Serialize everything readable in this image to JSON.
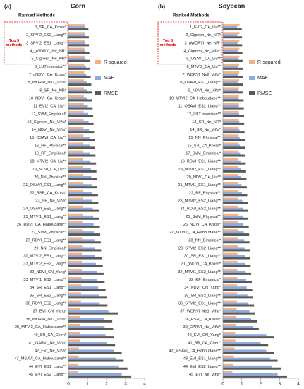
{
  "chart_data": [
    {
      "type": "bar",
      "orientation": "horizontal",
      "panel_label": "(a)",
      "title": "Corn",
      "axis_title": "Ranked Methods",
      "annotation": "Top 5 methods",
      "legend": "upper right",
      "categories": [
        "1_SR_CA_Kross*",
        "2_SPVI2_ES2_Liang**",
        "3_SPVI2_ES1_Liang**",
        "4_gWDRVI_Ne_NR*",
        "5_Clgreen_Ne_NR*",
        "6_LUT inversion**",
        "7_gNDVI_CA_Kross*",
        "8_WDRVI_Ne2_Viña*",
        "9_SR_Ne_NR*",
        "10_NDVI_CA_Kross*",
        "11_EVI2_CA_Liu**",
        "12_SVM_Empirical*",
        "13_Clgreen_Ne_Viña*",
        "14_NDVI_Ne_Viña*",
        "15_OSAVI_CA_Liu**",
        "16_RF_Physical**",
        "16_RF_Empirical*",
        "18_MTVI2_CA_Liu**",
        "19_NDVI_CA_Liu**",
        "20_NN_Physical**",
        "21_OSAVI_ES1_Liang**",
        "22_RSR_CA_Kross*",
        "23_SR_Ne_Viña*",
        "24_OSAVI_ES2_Liang**",
        "25_MTVI1_ES1_Liang**",
        "26_RDVI_CA_Haboudane**",
        "27_SVM_Physical**",
        "27_RDVI_ES1_Liang**",
        "29_NN_Empirical*",
        "30_MTVI2_ES1_Liang**",
        "31_MTVI2_ES2_Liang**",
        "32_NDVI_CN_Yang*",
        "33_MTVI1_ES2_Liang**",
        "34_SR_ES1_Liang**",
        "35_SR_ES2_Liang**",
        "36_RDVI_ES2_Liang**",
        "37_EVI_CN_Yang*",
        "38_WDRVI_Ne1_Viña*",
        "39_MTVI2_CA_Haboudane**",
        "40_SR_CA_Chen*",
        "41_GARVI_Ne_Viña*",
        "42_EVI_Ne_Viña*",
        "43_MSAVI_CA_Haboudane**",
        "44_EVI_ES1_Liang**",
        "45_EVI_ES2_Liang**"
      ],
      "series": [
        {
          "name": "R-squared",
          "color": "#f4b183",
          "values": [
            0.86,
            0.85,
            0.85,
            0.84,
            0.84,
            0.83,
            0.83,
            0.82,
            0.82,
            0.81,
            0.81,
            0.8,
            0.8,
            0.79,
            0.79,
            0.78,
            0.78,
            0.77,
            0.77,
            0.76,
            0.76,
            0.75,
            0.75,
            0.74,
            0.74,
            0.73,
            0.73,
            0.72,
            0.72,
            0.71,
            0.7,
            0.7,
            0.69,
            0.68,
            0.67,
            0.66,
            0.6,
            0.63,
            0.62,
            0.61,
            0.6,
            0.55,
            0.54,
            0.52,
            0.5
          ]
        },
        {
          "name": "MAE",
          "color": "#8faadc",
          "values": [
            0.85,
            0.86,
            0.87,
            0.89,
            0.9,
            0.92,
            0.94,
            0.96,
            0.98,
            1.0,
            1.02,
            1.04,
            1.06,
            1.08,
            1.1,
            1.12,
            1.14,
            1.16,
            1.18,
            1.2,
            1.22,
            1.24,
            1.26,
            1.28,
            1.3,
            1.32,
            1.34,
            1.36,
            1.38,
            1.4,
            1.44,
            1.48,
            1.52,
            1.56,
            1.6,
            1.64,
            2.1,
            1.85,
            1.9,
            1.95,
            2.0,
            2.4,
            2.5,
            2.65,
            2.8
          ]
        },
        {
          "name": "RMSE",
          "color": "#595959",
          "values": [
            1.05,
            1.07,
            1.08,
            1.1,
            1.12,
            1.15,
            1.17,
            1.2,
            1.22,
            1.25,
            1.27,
            1.3,
            1.32,
            1.35,
            1.37,
            1.4,
            1.42,
            1.45,
            1.47,
            1.5,
            1.52,
            1.55,
            1.57,
            1.6,
            1.62,
            1.65,
            1.67,
            1.7,
            1.72,
            1.75,
            1.8,
            1.85,
            1.9,
            1.95,
            2.0,
            2.05,
            2.6,
            2.3,
            2.35,
            2.4,
            2.45,
            2.8,
            2.9,
            3.1,
            3.3
          ]
        }
      ],
      "xlim": [
        0,
        4
      ],
      "xticks": [
        0,
        1,
        2,
        3,
        4
      ]
    },
    {
      "type": "bar",
      "orientation": "horizontal",
      "panel_label": "(b)",
      "title": "Soybean",
      "axis_title": "Ranked Methods",
      "annotation": "Top 5 methods",
      "legend": "upper right",
      "categories": [
        "1_EVI2_CA_Liu**",
        "2_Clgreen_Ne_NR*",
        "3_gWDRVI_Ne_NR*",
        "4_Clgreen_Ne_Viña*",
        "5_OSAVI_CA_Liu**",
        "6_MTVI2_CA_Liu**",
        "7_WDRVI_Ne2_Viña*",
        "8_OSAVI_ES1_Liang**",
        "9_NDVI_Ne_Viña*",
        "10_MTVI2_CA_Haboudane**",
        "11_OSAVI_ES2_Liang**",
        "12_LUT inversion**",
        "13_SR_Ne_NR*",
        "14_SR_Ne_Viña*",
        "15_NN_Physical**",
        "15_SR_CA_Kross*",
        "17_SVM_Empirical*",
        "18_RDVI_ES1_Liang**",
        "19_MTVI2_ES1_Liang**",
        "20_NDVI_CA_Liu**",
        "21_MTVI1_ES1_Liang**",
        "22_RF_Physical**",
        "23_MTVI2_ES2_Liang**",
        "24_RDVI_ES2_Liang**",
        "25_SVM_Physical**",
        "26_NDVI_CA_Kross*",
        "27_MTVI2_CA_Haboudane**",
        "28_NN_Empirical*",
        "29_SPVI2_ES2_Liang**",
        "30_SR_ES1_Liang**",
        "31_gNDVI_CA_Kross*",
        "32_MTVI1_ES2_Liang**",
        "32_RF_Empirical*",
        "34_NDVI_CN_Yang*",
        "35_SR_ES2_Liang**",
        "36_SPVI2_ES1_Liang**",
        "37_WDRVI_Ne1_Viña*",
        "38_RSR_CA_Kross*",
        "39_GARVI_Ne_Viña*",
        "40_EVI_CN_Yang*",
        "41_SR_CA_Chen*",
        "42_MSAVI_CA_Haboudane**",
        "43_EVI_ES1_Liang**",
        "44_EVI_ES2_Liang**",
        "45_EVI_Ne_Viña*"
      ],
      "series": [
        {
          "name": "R-squared",
          "color": "#f4b183",
          "values": [
            0.88,
            0.88,
            0.87,
            0.87,
            0.87,
            0.86,
            0.86,
            0.86,
            0.85,
            0.85,
            0.85,
            0.84,
            0.84,
            0.84,
            0.83,
            0.83,
            0.83,
            0.82,
            0.82,
            0.82,
            0.81,
            0.81,
            0.8,
            0.8,
            0.8,
            0.79,
            0.79,
            0.78,
            0.78,
            0.77,
            0.77,
            0.76,
            0.76,
            0.75,
            0.75,
            0.74,
            0.73,
            0.72,
            0.7,
            0.65,
            0.66,
            0.62,
            0.58,
            0.56,
            0.5
          ]
        },
        {
          "name": "MAE",
          "color": "#8faadc",
          "values": [
            0.75,
            0.76,
            0.77,
            0.78,
            0.79,
            0.8,
            0.81,
            0.82,
            0.83,
            0.84,
            0.85,
            0.86,
            0.87,
            0.88,
            0.89,
            0.9,
            0.91,
            0.93,
            0.95,
            0.97,
            0.99,
            1.01,
            1.03,
            1.05,
            1.07,
            1.09,
            1.11,
            1.13,
            1.15,
            1.17,
            1.19,
            1.21,
            1.23,
            1.26,
            1.3,
            1.35,
            1.4,
            1.5,
            1.6,
            2.3,
            2.0,
            2.3,
            2.5,
            2.6,
            2.9
          ]
        },
        {
          "name": "RMSE",
          "color": "#595959",
          "values": [
            1.0,
            1.01,
            1.02,
            1.03,
            1.04,
            1.05,
            1.06,
            1.07,
            1.08,
            1.1,
            1.11,
            1.12,
            1.13,
            1.15,
            1.16,
            1.18,
            1.19,
            1.21,
            1.23,
            1.25,
            1.27,
            1.29,
            1.31,
            1.33,
            1.35,
            1.37,
            1.39,
            1.41,
            1.43,
            1.45,
            1.47,
            1.5,
            1.53,
            1.56,
            1.6,
            1.65,
            1.7,
            1.8,
            1.9,
            2.7,
            2.4,
            2.7,
            2.9,
            3.1,
            3.4
          ]
        }
      ],
      "xlim": [
        0,
        4
      ],
      "xticks": [
        0,
        1,
        2,
        3,
        4
      ]
    }
  ]
}
